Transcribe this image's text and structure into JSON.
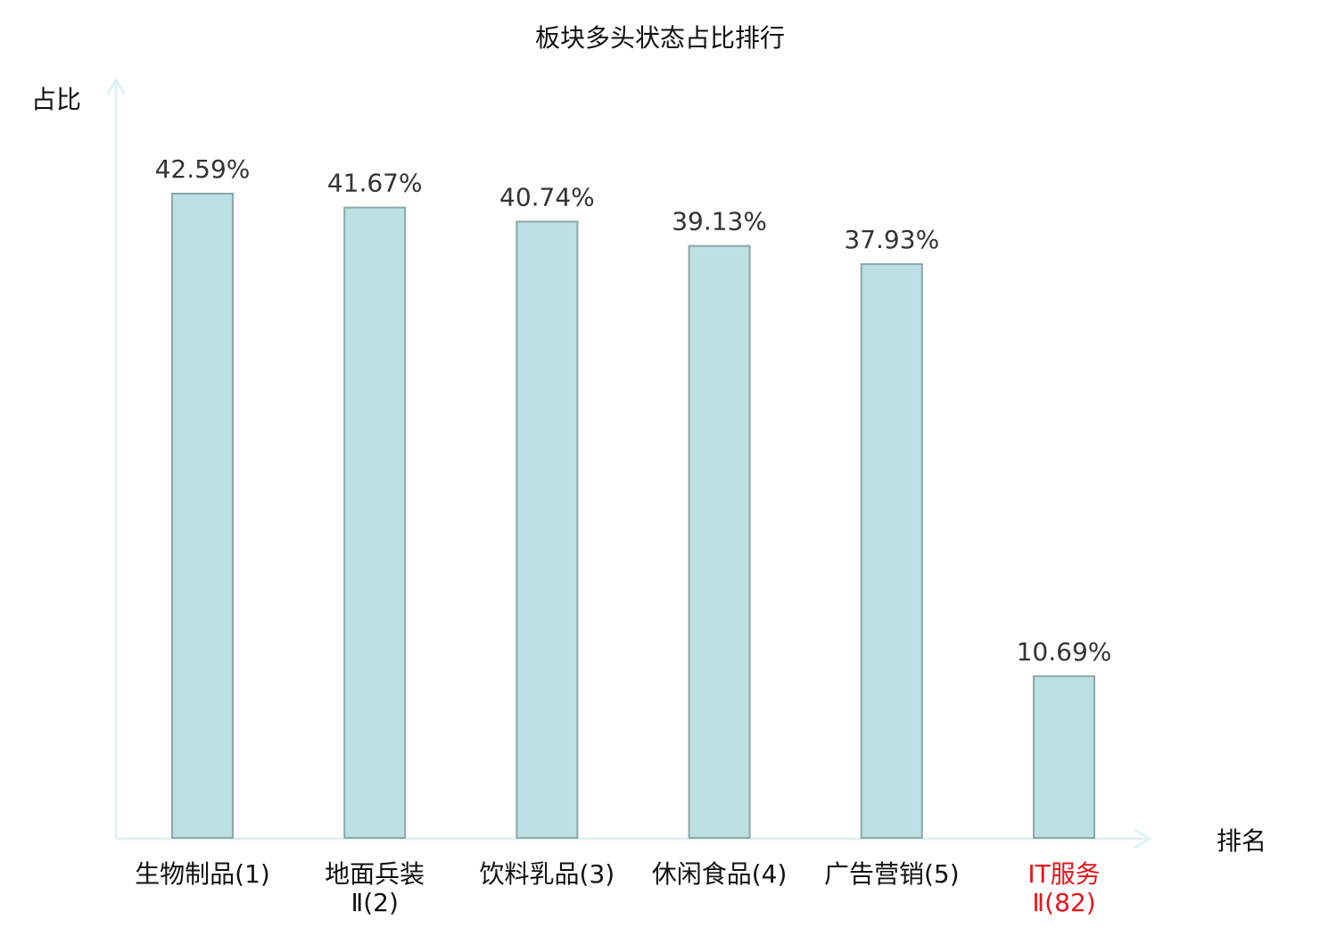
{
  "chart_data": {
    "type": "bar",
    "title": "板块多头状态占比排行",
    "ylabel": "占比",
    "xlabel": "排名",
    "categories": [
      {
        "label": "生物制品(1)",
        "lines": [
          "生物制品(1)"
        ],
        "highlight": false
      },
      {
        "label": "地面兵装Ⅱ(2)",
        "lines": [
          "地面兵装",
          "Ⅱ(2)"
        ],
        "highlight": false
      },
      {
        "label": "饮料乳品(3)",
        "lines": [
          "饮料乳品(3)"
        ],
        "highlight": false
      },
      {
        "label": "休闲食品(4)",
        "lines": [
          "休闲食品(4)"
        ],
        "highlight": false
      },
      {
        "label": "广告营销(5)",
        "lines": [
          "广告营销(5)"
        ],
        "highlight": false
      },
      {
        "label": "IT服务Ⅱ(82)",
        "lines": [
          "IT服务",
          "Ⅱ(82)"
        ],
        "highlight": true
      }
    ],
    "values": [
      42.59,
      41.67,
      40.74,
      39.13,
      37.93,
      10.69
    ],
    "data_labels": [
      "42.59%",
      "41.67%",
      "40.74%",
      "39.13%",
      "37.93%",
      "10.69%"
    ],
    "ylim": [
      0,
      42.59
    ],
    "grid": false,
    "colors": {
      "bar_fill": "#bce0e3",
      "bar_stroke": "#8aa9aa",
      "axis": "#dff2f1",
      "text": "#333333",
      "highlight_text": "#e8141b"
    }
  }
}
